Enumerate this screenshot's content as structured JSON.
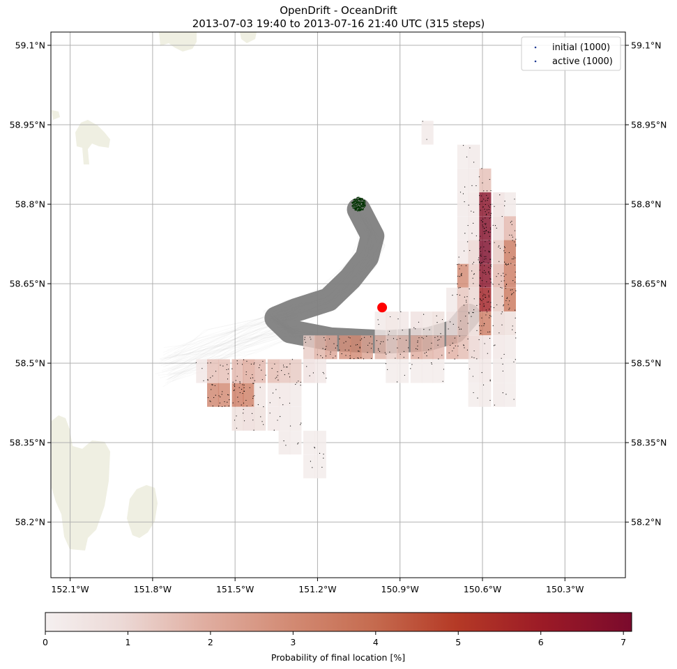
{
  "figure": {
    "title_line1": "OpenDrift - OceanDrift",
    "title_line2": "2013-07-03 19:40 to 2013-07-16 21:40 UTC (315 steps)"
  },
  "colors": {
    "land": "#efefe2",
    "grid": "#b0b0b0",
    "trajectory": "#808080",
    "seed": "#003300",
    "final": "#000000",
    "marker": "#ff0000",
    "initial_legend": "#1f3a93",
    "active_legend": "#1f3a93"
  },
  "chart_data": {
    "type": "heatmap",
    "title": "OpenDrift - OceanDrift",
    "subtitle": "2013-07-03 19:40 to 2013-07-16 21:40 UTC (315 steps)",
    "x_ticks": [
      "152.1°W",
      "151.8°W",
      "151.5°W",
      "151.2°W",
      "150.9°W",
      "150.6°W",
      "150.3°W"
    ],
    "x_tick_values": [
      -152.1,
      -151.8,
      -151.5,
      -151.2,
      -150.9,
      -150.6,
      -150.3
    ],
    "y_ticks": [
      "59.1°N",
      "58.95°N",
      "58.8°N",
      "58.65°N",
      "58.5°N",
      "58.35°N",
      "58.2°N"
    ],
    "y_tick_values": [
      59.1,
      58.95,
      58.8,
      58.65,
      58.5,
      58.35,
      58.2
    ],
    "xlim": [
      -152.17,
      -150.08
    ],
    "ylim": [
      58.095,
      59.125
    ],
    "grid": true,
    "legend": {
      "placement": "top-right",
      "entries": [
        "initial (1000)",
        "active (1000)"
      ]
    },
    "colorbar": {
      "label": "Probability of final location [%]",
      "ticks": [
        "0",
        "1",
        "2",
        "3",
        "4",
        "5",
        "6",
        "7"
      ],
      "tick_values": [
        0,
        1,
        2,
        3,
        4,
        5,
        6,
        7
      ],
      "range": [
        0,
        7.1
      ]
    },
    "seed_point": {
      "lon": -151.05,
      "lat": 58.8
    },
    "marker_point": {
      "lon": -150.965,
      "lat": 58.605
    },
    "bin_size": {
      "dlon": 0.0434,
      "dlat": 0.0448
    },
    "cells": [
      {
        "lon": -150.8,
        "lat": 58.935,
        "v": 0.3
      },
      {
        "lon": -150.67,
        "lat": 58.89,
        "v": 0.2
      },
      {
        "lon": -150.63,
        "lat": 58.89,
        "v": 0.3
      },
      {
        "lon": -150.67,
        "lat": 58.845,
        "v": 0.3
      },
      {
        "lon": -150.63,
        "lat": 58.845,
        "v": 0.3
      },
      {
        "lon": -150.59,
        "lat": 58.845,
        "v": 1.5
      },
      {
        "lon": -150.67,
        "lat": 58.8,
        "v": 0.3
      },
      {
        "lon": -150.63,
        "lat": 58.8,
        "v": 0.4
      },
      {
        "lon": -150.59,
        "lat": 58.8,
        "v": 6.6
      },
      {
        "lon": -150.54,
        "lat": 58.8,
        "v": 0.6
      },
      {
        "lon": -150.5,
        "lat": 58.8,
        "v": 0.3
      },
      {
        "lon": -150.67,
        "lat": 58.755,
        "v": 0.3
      },
      {
        "lon": -150.63,
        "lat": 58.755,
        "v": 0.4
      },
      {
        "lon": -150.59,
        "lat": 58.755,
        "v": 6.8
      },
      {
        "lon": -150.54,
        "lat": 58.755,
        "v": 0.8
      },
      {
        "lon": -150.5,
        "lat": 58.755,
        "v": 1.7
      },
      {
        "lon": -150.67,
        "lat": 58.71,
        "v": 0.4
      },
      {
        "lon": -150.63,
        "lat": 58.71,
        "v": 1.0
      },
      {
        "lon": -150.59,
        "lat": 58.71,
        "v": 7.0
      },
      {
        "lon": -150.54,
        "lat": 58.71,
        "v": 1.3
      },
      {
        "lon": -150.5,
        "lat": 58.71,
        "v": 3.5
      },
      {
        "lon": -150.67,
        "lat": 58.665,
        "v": 3.0
      },
      {
        "lon": -150.63,
        "lat": 58.665,
        "v": 1.2
      },
      {
        "lon": -150.59,
        "lat": 58.665,
        "v": 6.6
      },
      {
        "lon": -150.54,
        "lat": 58.665,
        "v": 1.7
      },
      {
        "lon": -150.5,
        "lat": 58.665,
        "v": 3.4
      },
      {
        "lon": -150.71,
        "lat": 58.62,
        "v": 0.3
      },
      {
        "lon": -150.67,
        "lat": 58.62,
        "v": 1.4
      },
      {
        "lon": -150.63,
        "lat": 58.62,
        "v": 1.0
      },
      {
        "lon": -150.59,
        "lat": 58.62,
        "v": 5.8
      },
      {
        "lon": -150.54,
        "lat": 58.62,
        "v": 1.3
      },
      {
        "lon": -150.5,
        "lat": 58.62,
        "v": 3.6
      },
      {
        "lon": -150.97,
        "lat": 58.575,
        "v": 0.3
      },
      {
        "lon": -150.93,
        "lat": 58.575,
        "v": 0.5
      },
      {
        "lon": -150.89,
        "lat": 58.575,
        "v": 0.4
      },
      {
        "lon": -150.84,
        "lat": 58.575,
        "v": 0.6
      },
      {
        "lon": -150.8,
        "lat": 58.575,
        "v": 0.5
      },
      {
        "lon": -150.76,
        "lat": 58.575,
        "v": 0.7
      },
      {
        "lon": -150.71,
        "lat": 58.575,
        "v": 0.6
      },
      {
        "lon": -150.67,
        "lat": 58.575,
        "v": 1.4
      },
      {
        "lon": -150.63,
        "lat": 58.575,
        "v": 0.9
      },
      {
        "lon": -150.59,
        "lat": 58.575,
        "v": 3.4
      },
      {
        "lon": -150.54,
        "lat": 58.575,
        "v": 0.9
      },
      {
        "lon": -150.5,
        "lat": 58.575,
        "v": 0.7
      },
      {
        "lon": -151.23,
        "lat": 58.53,
        "v": 1.2
      },
      {
        "lon": -151.19,
        "lat": 58.53,
        "v": 1.8
      },
      {
        "lon": -151.15,
        "lat": 58.53,
        "v": 2.2
      },
      {
        "lon": -151.1,
        "lat": 58.53,
        "v": 2.8
      },
      {
        "lon": -151.06,
        "lat": 58.53,
        "v": 3.0
      },
      {
        "lon": -151.02,
        "lat": 58.53,
        "v": 2.3
      },
      {
        "lon": -150.97,
        "lat": 58.53,
        "v": 1.8
      },
      {
        "lon": -150.93,
        "lat": 58.53,
        "v": 1.2
      },
      {
        "lon": -150.89,
        "lat": 58.53,
        "v": 1.6
      },
      {
        "lon": -150.84,
        "lat": 58.53,
        "v": 2.0
      },
      {
        "lon": -150.8,
        "lat": 58.53,
        "v": 1.8
      },
      {
        "lon": -150.76,
        "lat": 58.53,
        "v": 1.7
      },
      {
        "lon": -150.71,
        "lat": 58.53,
        "v": 1.9
      },
      {
        "lon": -150.67,
        "lat": 58.53,
        "v": 1.6
      },
      {
        "lon": -150.63,
        "lat": 58.53,
        "v": 1.0
      },
      {
        "lon": -150.59,
        "lat": 58.53,
        "v": 0.6
      },
      {
        "lon": -150.54,
        "lat": 58.53,
        "v": 0.4
      },
      {
        "lon": -150.5,
        "lat": 58.53,
        "v": 0.3
      },
      {
        "lon": -151.62,
        "lat": 58.485,
        "v": 0.4
      },
      {
        "lon": -151.58,
        "lat": 58.485,
        "v": 1.5
      },
      {
        "lon": -151.54,
        "lat": 58.485,
        "v": 1.5
      },
      {
        "lon": -151.49,
        "lat": 58.485,
        "v": 1.7
      },
      {
        "lon": -151.45,
        "lat": 58.485,
        "v": 2.0
      },
      {
        "lon": -151.41,
        "lat": 58.485,
        "v": 1.7
      },
      {
        "lon": -151.36,
        "lat": 58.485,
        "v": 1.6
      },
      {
        "lon": -151.32,
        "lat": 58.485,
        "v": 1.4
      },
      {
        "lon": -151.28,
        "lat": 58.485,
        "v": 1.3
      },
      {
        "lon": -151.23,
        "lat": 58.485,
        "v": 0.6
      },
      {
        "lon": -151.19,
        "lat": 58.485,
        "v": 0.4
      },
      {
        "lon": -150.93,
        "lat": 58.485,
        "v": 0.2
      },
      {
        "lon": -150.89,
        "lat": 58.485,
        "v": 0.2
      },
      {
        "lon": -150.84,
        "lat": 58.485,
        "v": 0.2
      },
      {
        "lon": -150.8,
        "lat": 58.485,
        "v": 0.2
      },
      {
        "lon": -150.76,
        "lat": 58.485,
        "v": 0.2
      },
      {
        "lon": -150.63,
        "lat": 58.485,
        "v": 0.3
      },
      {
        "lon": -150.59,
        "lat": 58.485,
        "v": 0.4
      },
      {
        "lon": -150.54,
        "lat": 58.485,
        "v": 0.3
      },
      {
        "lon": -150.5,
        "lat": 58.485,
        "v": 0.2
      },
      {
        "lon": -151.58,
        "lat": 58.44,
        "v": 3.1
      },
      {
        "lon": -151.54,
        "lat": 58.44,
        "v": 3.0
      },
      {
        "lon": -151.49,
        "lat": 58.44,
        "v": 3.4
      },
      {
        "lon": -151.45,
        "lat": 58.44,
        "v": 3.3
      },
      {
        "lon": -151.41,
        "lat": 58.44,
        "v": 0.5
      },
      {
        "lon": -151.36,
        "lat": 58.44,
        "v": 0.4
      },
      {
        "lon": -151.32,
        "lat": 58.44,
        "v": 0.4
      },
      {
        "lon": -151.28,
        "lat": 58.44,
        "v": 0.3
      },
      {
        "lon": -150.63,
        "lat": 58.44,
        "v": 0.2
      },
      {
        "lon": -150.59,
        "lat": 58.44,
        "v": 0.3
      },
      {
        "lon": -150.54,
        "lat": 58.44,
        "v": 0.3
      },
      {
        "lon": -150.5,
        "lat": 58.44,
        "v": 0.2
      },
      {
        "lon": -151.49,
        "lat": 58.395,
        "v": 0.7
      },
      {
        "lon": -151.45,
        "lat": 58.395,
        "v": 0.8
      },
      {
        "lon": -151.41,
        "lat": 58.395,
        "v": 0.7
      },
      {
        "lon": -151.36,
        "lat": 58.395,
        "v": 0.4
      },
      {
        "lon": -151.32,
        "lat": 58.395,
        "v": 0.3
      },
      {
        "lon": -151.28,
        "lat": 58.395,
        "v": 0.3
      },
      {
        "lon": -151.32,
        "lat": 58.35,
        "v": 0.3
      },
      {
        "lon": -151.28,
        "lat": 58.35,
        "v": 0.2
      },
      {
        "lon": -151.23,
        "lat": 58.35,
        "v": 0.2
      },
      {
        "lon": -151.19,
        "lat": 58.35,
        "v": 0.2
      },
      {
        "lon": -151.23,
        "lat": 58.305,
        "v": 0.2
      },
      {
        "lon": -151.19,
        "lat": 58.305,
        "v": 0.2
      }
    ]
  }
}
